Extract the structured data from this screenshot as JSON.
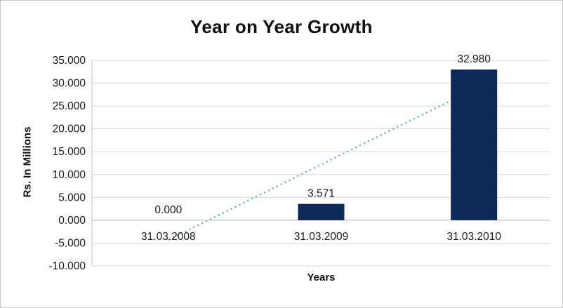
{
  "chart_data": {
    "type": "bar",
    "title": "Year on Year Growth",
    "xlabel": "Years",
    "ylabel": "Rs. In Millions",
    "categories": [
      "31.03.2008",
      "31.03.2009",
      "31.03.2010"
    ],
    "values": [
      0,
      3.571,
      32.98
    ],
    "data_labels": [
      "0.000",
      "3.571",
      "32.980"
    ],
    "ylim": [
      -10,
      35
    ],
    "ytick_step": 5,
    "ytick_labels": [
      "35.000",
      "30.000",
      "25.000",
      "20.000",
      "15.000",
      "10.000",
      "5.000",
      "0.000",
      "-5.000",
      "-10.000"
    ],
    "grid": true,
    "legend": "none",
    "trendline": {
      "style": "dotted",
      "start_value": -4.31,
      "end_value": 28.67
    },
    "colors": {
      "bar": "#0d2957",
      "trend": "#7ba7d7",
      "gridline": "#d9d9d9",
      "axis": "#bfbfbf",
      "text": "#1a1a1a",
      "background": "#ffffff",
      "frame_border": "#c9c7c5"
    }
  }
}
